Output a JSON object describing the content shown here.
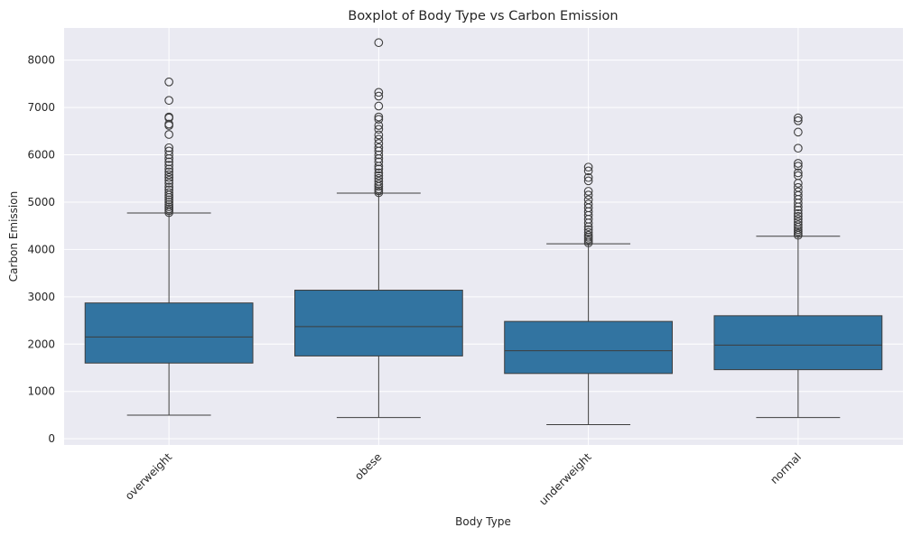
{
  "chart_data": {
    "type": "boxplot",
    "title": "Boxplot of Body Type vs Carbon Emission",
    "xlabel": "Body Type",
    "ylabel": "Carbon Emission",
    "ylim": [
      -130,
      8680
    ],
    "yticks": [
      0,
      1000,
      2000,
      3000,
      4000,
      5000,
      6000,
      7000,
      8000
    ],
    "grid": true,
    "box_color": "#3274a1",
    "line_color": "#3d3d3d",
    "background": "#eaeaf2",
    "categories": [
      "overweight",
      "obese",
      "underweight",
      "normal"
    ],
    "boxes": [
      {
        "category": "overweight",
        "whisker_low": 500,
        "q1": 1600,
        "median": 2150,
        "q3": 2870,
        "whisker_high": 4770,
        "outliers": [
          4780,
          4820,
          4860,
          4900,
          4950,
          5000,
          5050,
          5100,
          5150,
          5200,
          5260,
          5320,
          5400,
          5460,
          5520,
          5580,
          5640,
          5700,
          5780,
          5850,
          5920,
          6000,
          6080,
          6150,
          6430,
          6620,
          6650,
          6780,
          6800,
          7150,
          7540
        ]
      },
      {
        "category": "obese",
        "whisker_low": 450,
        "q1": 1750,
        "median": 2370,
        "q3": 3140,
        "whisker_high": 5190,
        "outliers": [
          5200,
          5240,
          5280,
          5330,
          5380,
          5440,
          5500,
          5560,
          5620,
          5700,
          5760,
          5850,
          5920,
          6000,
          6080,
          6150,
          6240,
          6330,
          6420,
          6540,
          6620,
          6750,
          6800,
          7030,
          7240,
          7320,
          8370
        ]
      },
      {
        "category": "underweight",
        "whisker_low": 300,
        "q1": 1380,
        "median": 1860,
        "q3": 2480,
        "whisker_high": 4120,
        "outliers": [
          4140,
          4180,
          4220,
          4260,
          4300,
          4360,
          4420,
          4480,
          4560,
          4640,
          4720,
          4800,
          4880,
          4960,
          5050,
          5150,
          5230,
          5450,
          5520,
          5660,
          5740
        ]
      },
      {
        "category": "normal",
        "whisker_low": 450,
        "q1": 1460,
        "median": 1980,
        "q3": 2600,
        "whisker_high": 4280,
        "outliers": [
          4300,
          4340,
          4380,
          4420,
          4470,
          4520,
          4580,
          4640,
          4700,
          4760,
          4830,
          4900,
          4980,
          5060,
          5140,
          5220,
          5310,
          5400,
          5560,
          5620,
          5760,
          5820,
          6140,
          6480,
          6720,
          6780
        ]
      }
    ]
  }
}
